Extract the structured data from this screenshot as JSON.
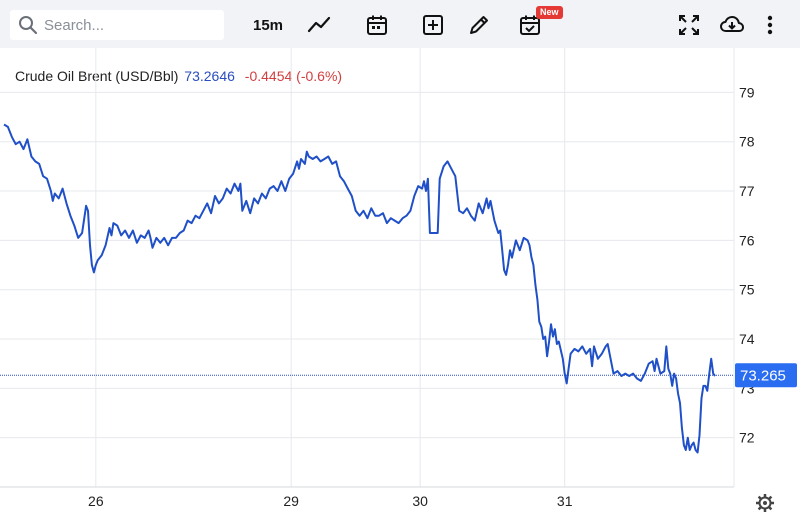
{
  "toolbar": {
    "search_placeholder": "Search...",
    "interval": "15m",
    "new_badge": "New"
  },
  "legend": {
    "name": "Crude Oil Brent (USD/Bbl)",
    "price": "73.2646",
    "change": "-0.4454 (-0.6%)"
  },
  "colors": {
    "line": "#2050c8",
    "price_label_bg": "#2a6df0",
    "change_negative": "#d23f3f",
    "grid": "#e6e8ec"
  },
  "chart_data": {
    "type": "line",
    "title": "Crude Oil Brent (USD/Bbl)",
    "last_price_label": "73.265",
    "ylim": [
      71,
      79.9
    ],
    "yticks": [
      72,
      73,
      74,
      75,
      76,
      77,
      78,
      79
    ],
    "xticks": [
      {
        "label": "26",
        "x": 47
      },
      {
        "label": "29",
        "x": 147
      },
      {
        "label": "30",
        "x": 213
      },
      {
        "label": "31",
        "x": 287
      }
    ],
    "xlim": [
      0,
      367
    ],
    "grid": true,
    "series": [
      {
        "points": [
          [
            0,
            78.35
          ],
          [
            2,
            78.3
          ],
          [
            4,
            78.1
          ],
          [
            6,
            77.95
          ],
          [
            8,
            78.0
          ],
          [
            10,
            77.85
          ],
          [
            12,
            78.05
          ],
          [
            14,
            77.7
          ],
          [
            16,
            77.6
          ],
          [
            18,
            77.55
          ],
          [
            20,
            77.3
          ],
          [
            22,
            77.25
          ],
          [
            24,
            77.0
          ],
          [
            25,
            76.8
          ],
          [
            26,
            76.95
          ],
          [
            28,
            76.85
          ],
          [
            29,
            76.95
          ],
          [
            30,
            77.05
          ],
          [
            32,
            76.75
          ],
          [
            34,
            76.5
          ],
          [
            36,
            76.3
          ],
          [
            38,
            76.05
          ],
          [
            40,
            76.15
          ],
          [
            42,
            76.7
          ],
          [
            43,
            76.6
          ],
          [
            44,
            75.9
          ],
          [
            45,
            75.5
          ],
          [
            46,
            75.35
          ],
          [
            47,
            75.5
          ],
          [
            48,
            75.6
          ],
          [
            50,
            75.7
          ],
          [
            52,
            75.9
          ],
          [
            54,
            76.25
          ],
          [
            55,
            76.1
          ],
          [
            56,
            76.35
          ],
          [
            58,
            76.3
          ],
          [
            60,
            76.1
          ],
          [
            62,
            76.2
          ],
          [
            64,
            76.05
          ],
          [
            66,
            76.2
          ],
          [
            68,
            75.95
          ],
          [
            70,
            76.1
          ],
          [
            72,
            76.05
          ],
          [
            74,
            76.2
          ],
          [
            75,
            76.05
          ],
          [
            76,
            75.85
          ],
          [
            78,
            76.05
          ],
          [
            80,
            75.95
          ],
          [
            82,
            76.05
          ],
          [
            84,
            75.9
          ],
          [
            86,
            76.05
          ],
          [
            88,
            76.05
          ],
          [
            90,
            76.15
          ],
          [
            92,
            76.2
          ],
          [
            94,
            76.4
          ],
          [
            96,
            76.35
          ],
          [
            98,
            76.5
          ],
          [
            100,
            76.45
          ],
          [
            102,
            76.6
          ],
          [
            104,
            76.75
          ],
          [
            106,
            76.55
          ],
          [
            108,
            76.9
          ],
          [
            110,
            76.75
          ],
          [
            112,
            76.85
          ],
          [
            114,
            77.05
          ],
          [
            116,
            76.95
          ],
          [
            118,
            77.15
          ],
          [
            120,
            77.0
          ],
          [
            121,
            77.15
          ],
          [
            122,
            76.6
          ],
          [
            124,
            76.8
          ],
          [
            126,
            76.55
          ],
          [
            128,
            76.85
          ],
          [
            130,
            76.75
          ],
          [
            132,
            76.95
          ],
          [
            134,
            76.85
          ],
          [
            136,
            77.05
          ],
          [
            138,
            77.1
          ],
          [
            140,
            77.0
          ],
          [
            142,
            77.2
          ],
          [
            144,
            77.0
          ],
          [
            146,
            77.25
          ],
          [
            148,
            77.35
          ],
          [
            150,
            77.6
          ],
          [
            151,
            77.45
          ],
          [
            152,
            77.65
          ],
          [
            154,
            77.55
          ],
          [
            155,
            77.8
          ],
          [
            156,
            77.7
          ],
          [
            158,
            77.65
          ],
          [
            160,
            77.7
          ],
          [
            162,
            77.6
          ],
          [
            164,
            77.65
          ],
          [
            166,
            77.7
          ],
          [
            168,
            77.55
          ],
          [
            170,
            77.6
          ],
          [
            172,
            77.3
          ],
          [
            174,
            77.2
          ],
          [
            176,
            77.05
          ],
          [
            178,
            76.9
          ],
          [
            180,
            76.6
          ],
          [
            182,
            76.5
          ],
          [
            184,
            76.6
          ],
          [
            186,
            76.45
          ],
          [
            188,
            76.65
          ],
          [
            190,
            76.5
          ],
          [
            192,
            76.5
          ],
          [
            194,
            76.55
          ],
          [
            196,
            76.35
          ],
          [
            198,
            76.45
          ],
          [
            200,
            76.4
          ],
          [
            202,
            76.35
          ],
          [
            204,
            76.45
          ],
          [
            206,
            76.5
          ],
          [
            208,
            76.6
          ],
          [
            210,
            76.9
          ],
          [
            212,
            77.1
          ],
          [
            214,
            77.05
          ],
          [
            215,
            77.2
          ],
          [
            216,
            77.0
          ],
          [
            217,
            77.25
          ],
          [
            218,
            76.15
          ],
          [
            220,
            76.15
          ],
          [
            222,
            76.15
          ],
          [
            223,
            77.25
          ],
          [
            225,
            77.5
          ],
          [
            227,
            77.6
          ],
          [
            229,
            77.45
          ],
          [
            231,
            77.3
          ],
          [
            233,
            76.6
          ],
          [
            235,
            76.55
          ],
          [
            237,
            76.65
          ],
          [
            239,
            76.5
          ],
          [
            241,
            76.4
          ],
          [
            243,
            76.75
          ],
          [
            245,
            76.55
          ],
          [
            247,
            76.85
          ],
          [
            248,
            76.65
          ],
          [
            249,
            76.8
          ],
          [
            251,
            76.4
          ],
          [
            253,
            76.15
          ],
          [
            254,
            76.2
          ],
          [
            255,
            75.8
          ],
          [
            256,
            75.4
          ],
          [
            257,
            75.3
          ],
          [
            258,
            75.5
          ],
          [
            259,
            75.8
          ],
          [
            260,
            75.65
          ],
          [
            262,
            76.0
          ],
          [
            264,
            75.8
          ],
          [
            266,
            76.05
          ],
          [
            268,
            76.0
          ],
          [
            269,
            75.9
          ],
          [
            270,
            75.65
          ],
          [
            271,
            75.5
          ],
          [
            272,
            75.1
          ],
          [
            273,
            74.8
          ],
          [
            274,
            74.35
          ],
          [
            275,
            74.25
          ],
          [
            276,
            74.0
          ],
          [
            277,
            74.05
          ],
          [
            278,
            73.65
          ],
          [
            279,
            73.95
          ],
          [
            280,
            74.3
          ],
          [
            281,
            74.05
          ],
          [
            282,
            74.2
          ],
          [
            283,
            73.9
          ],
          [
            284,
            73.95
          ],
          [
            286,
            73.6
          ],
          [
            287,
            73.3
          ],
          [
            288,
            73.1
          ],
          [
            289,
            73.4
          ],
          [
            290,
            73.7
          ],
          [
            292,
            73.8
          ],
          [
            294,
            73.75
          ],
          [
            296,
            73.85
          ],
          [
            298,
            73.7
          ],
          [
            300,
            73.8
          ],
          [
            301,
            73.45
          ],
          [
            302,
            73.85
          ],
          [
            304,
            73.6
          ],
          [
            306,
            73.7
          ],
          [
            308,
            73.85
          ],
          [
            309,
            73.9
          ],
          [
            310,
            73.7
          ],
          [
            312,
            73.3
          ],
          [
            314,
            73.35
          ],
          [
            316,
            73.25
          ],
          [
            318,
            73.3
          ],
          [
            320,
            73.25
          ],
          [
            322,
            73.3
          ],
          [
            324,
            73.2
          ],
          [
            326,
            73.15
          ],
          [
            328,
            73.3
          ],
          [
            330,
            73.5
          ],
          [
            332,
            73.55
          ],
          [
            333,
            73.35
          ],
          [
            334,
            73.6
          ],
          [
            336,
            73.3
          ],
          [
            338,
            73.35
          ],
          [
            339,
            73.85
          ],
          [
            340,
            73.4
          ],
          [
            341,
            73.3
          ],
          [
            342,
            73.05
          ],
          [
            343,
            73.3
          ],
          [
            344,
            73.2
          ],
          [
            345,
            72.9
          ],
          [
            346,
            72.7
          ],
          [
            347,
            72.2
          ],
          [
            348,
            71.85
          ],
          [
            349,
            71.75
          ],
          [
            350,
            72.0
          ],
          [
            351,
            71.75
          ],
          [
            352,
            71.85
          ],
          [
            353,
            71.9
          ],
          [
            354,
            71.75
          ],
          [
            355,
            71.7
          ],
          [
            356,
            72.05
          ],
          [
            357,
            72.8
          ],
          [
            358,
            73.05
          ],
          [
            359,
            73.05
          ],
          [
            360,
            72.95
          ],
          [
            361,
            73.3
          ],
          [
            362,
            73.6
          ],
          [
            363,
            73.3
          ],
          [
            364,
            73.25
          ]
        ]
      }
    ]
  }
}
